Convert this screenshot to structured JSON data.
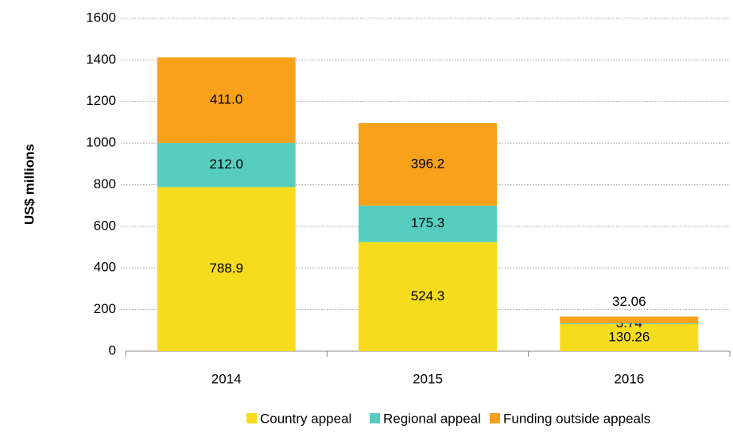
{
  "chart_data": {
    "type": "stacked_bar",
    "y_axis_label": "US$ millions",
    "categories": [
      "2014",
      "2015",
      "2016"
    ],
    "series": [
      {
        "name": "Country appeal",
        "color": "#f7dc1e",
        "values": [
          788.9,
          524.3,
          130.26
        ],
        "value_labels": [
          "788.9",
          "524.3",
          "130.26"
        ]
      },
      {
        "name": "Regional appeal",
        "color": "#57cdc0",
        "values": [
          212.0,
          175.3,
          3.74
        ],
        "value_labels": [
          "212.0",
          "175.3",
          "3.74"
        ]
      },
      {
        "name": "Funding outside appeals",
        "color": "#f7a11a",
        "values": [
          411.0,
          396.2,
          32.06
        ],
        "value_labels": [
          "411.0",
          "396.2",
          "32.06"
        ]
      }
    ],
    "ylim": [
      0,
      1600
    ],
    "yticks": [
      0,
      200,
      400,
      600,
      800,
      1000,
      1200,
      1400,
      1600
    ],
    "grid": true,
    "legend": "bottom"
  }
}
